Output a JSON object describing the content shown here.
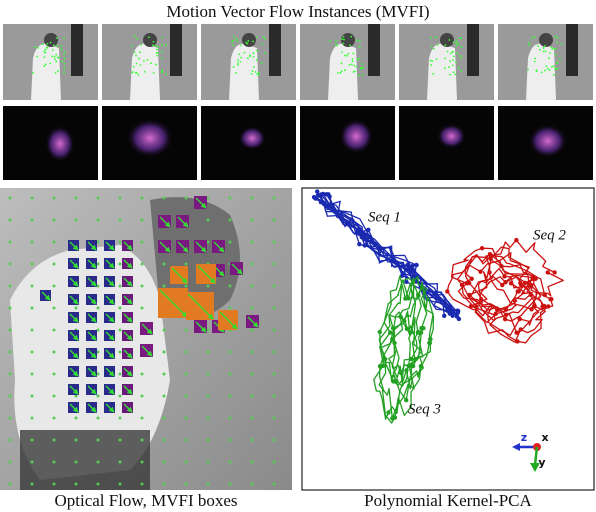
{
  "figure": {
    "title": "Motion Vector Flow Instances (MVFI)",
    "optical_flow_caption": "Optical Flow, MVFI boxes",
    "kpca_caption": "Polynomial Kernel-PCA",
    "sequence_labels": [
      "Seq 1",
      "Seq 2",
      "Seq 3"
    ],
    "axis_labels": [
      "z",
      "x",
      "y"
    ]
  }
}
